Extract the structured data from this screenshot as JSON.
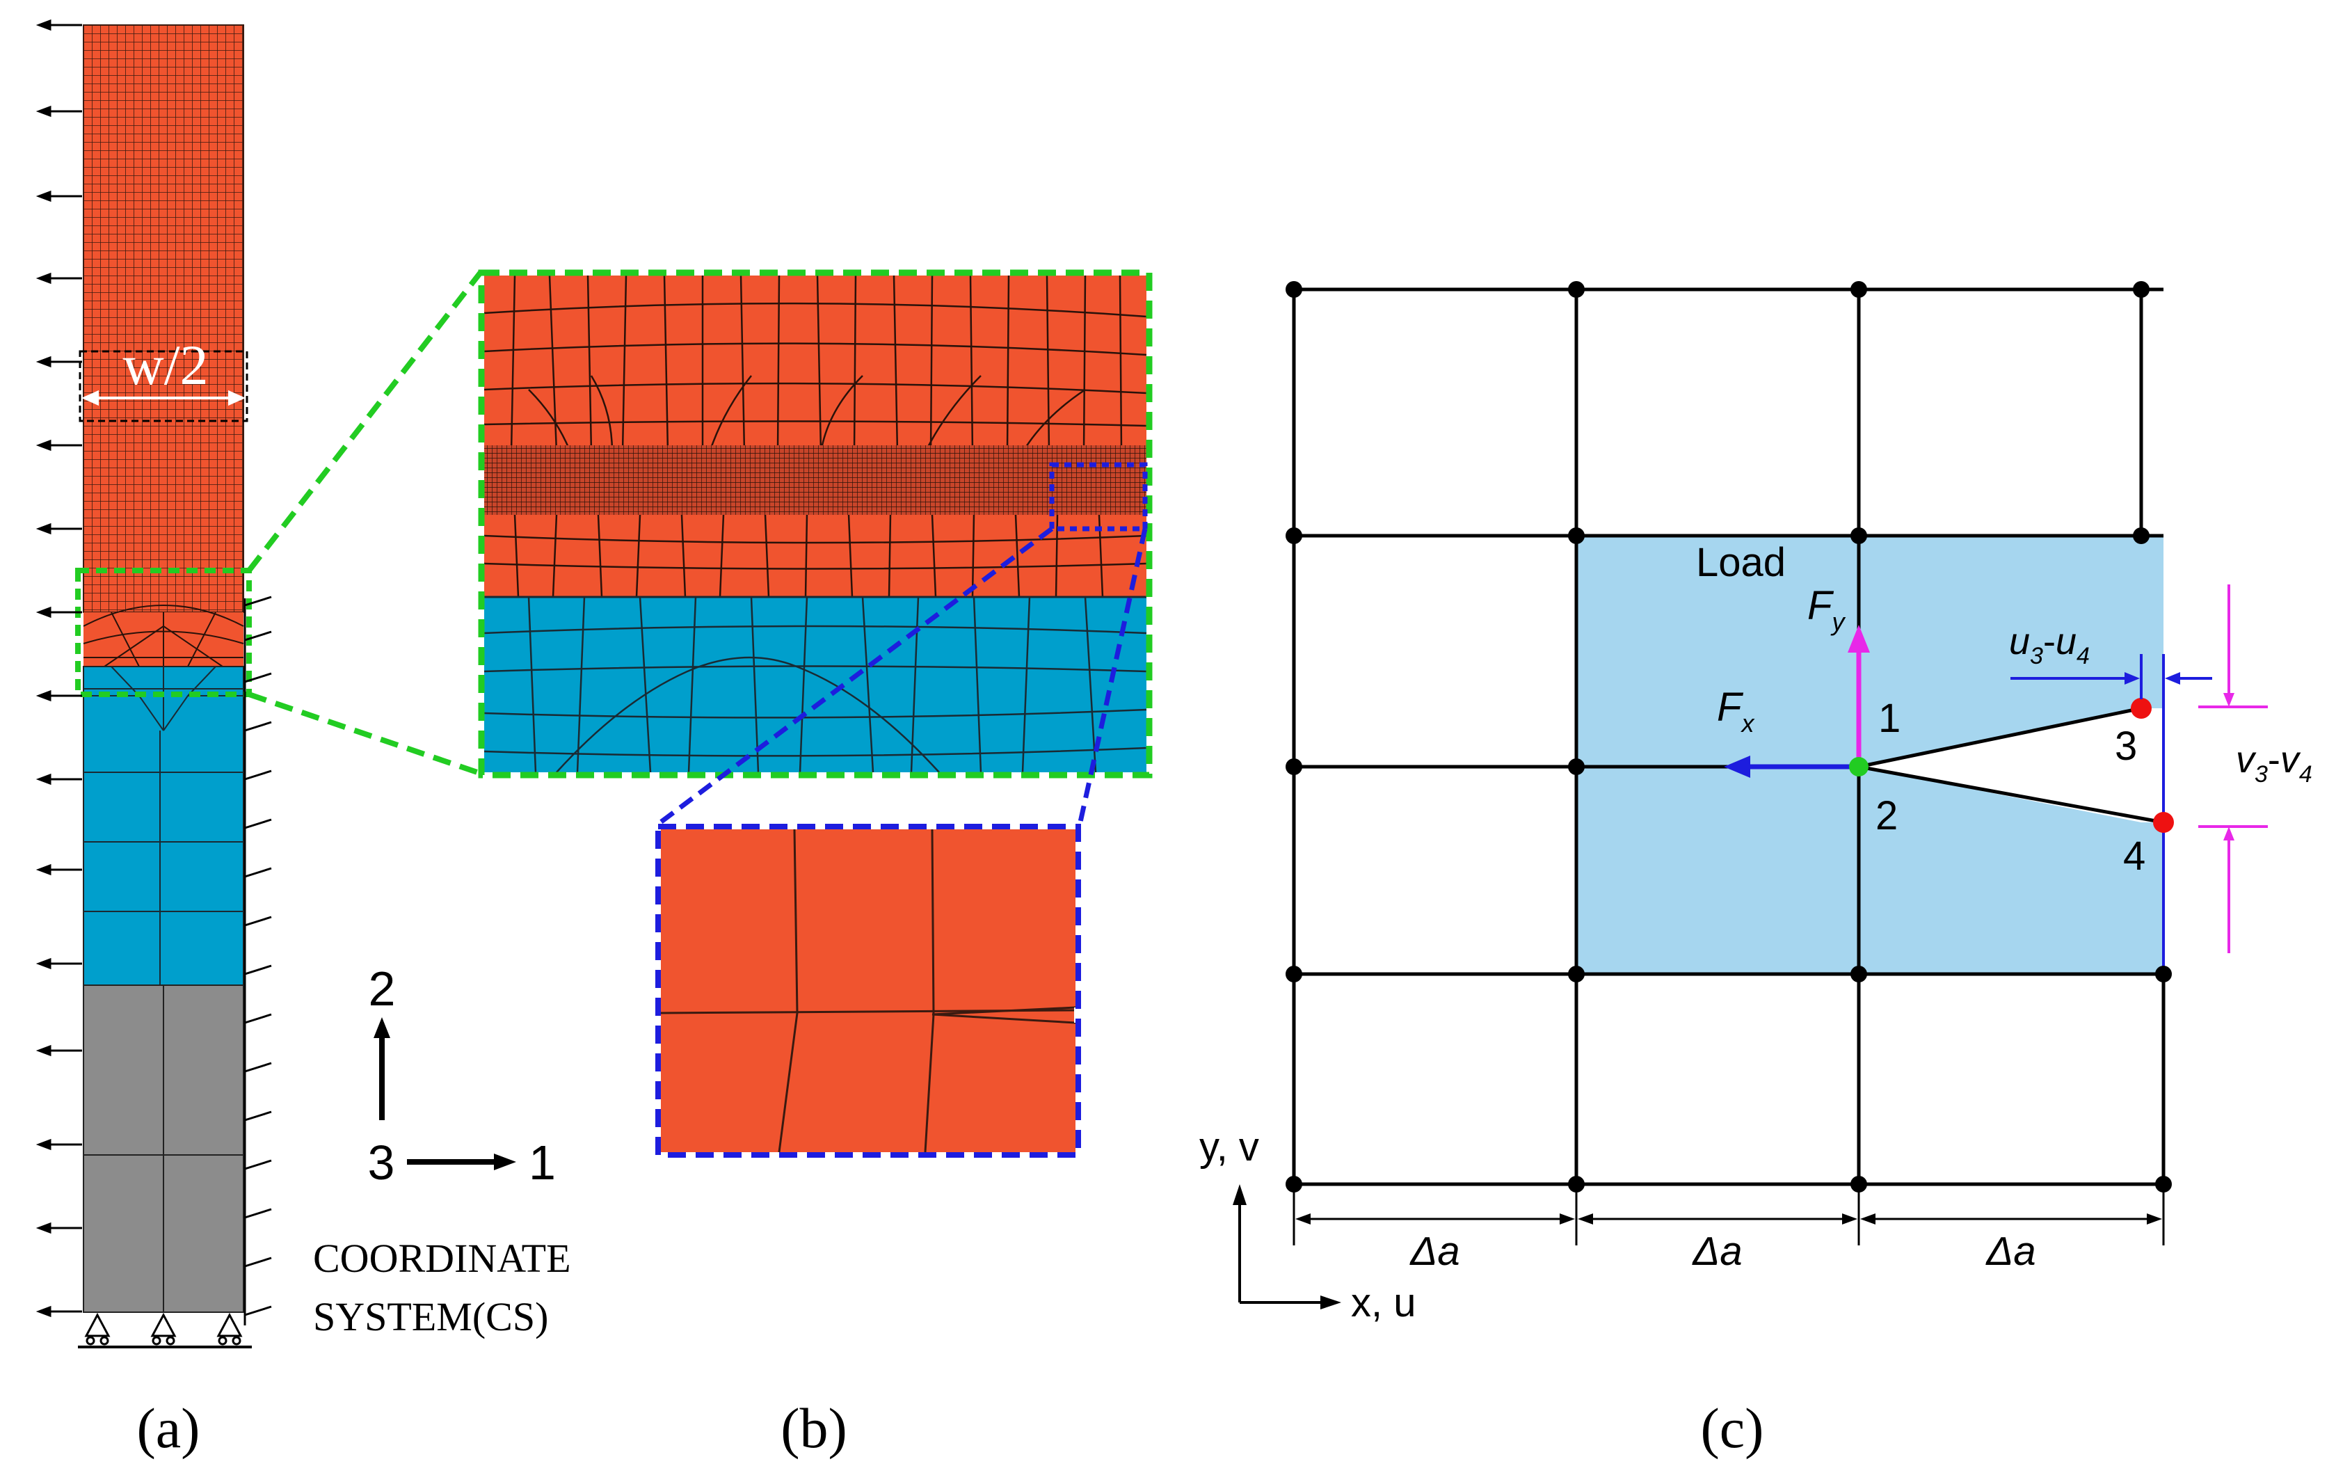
{
  "panel_a": {
    "caption": "(a)",
    "width_label": "w/2",
    "cs_axis_2": "2",
    "cs_axis_3": "3",
    "cs_axis_1": "1",
    "cs_line1": "COORDINATE",
    "cs_line2": "SYSTEM(CS)"
  },
  "panel_b": {
    "caption": "(b)"
  },
  "panel_c": {
    "caption": "(c)",
    "load_label": "Load",
    "fy_main": "F",
    "fy_sub": "y",
    "fx_main": "F",
    "fx_sub": "x",
    "node1": "1",
    "node2": "2",
    "node3": "3",
    "node4": "4",
    "du_v": "u",
    "du_s1": "3",
    "du_dash": "-",
    "du_v2": "u",
    "du_s2": "4",
    "dv_v": "v",
    "dv_s1": "3",
    "dv_dash": "-",
    "dv_v2": "v",
    "dv_s2": "4",
    "yaxis_label": "y, v",
    "xaxis_label": "x, u",
    "delta1": "Δa",
    "delta2": "Δa",
    "delta3": "Δa"
  },
  "colors": {
    "orange": "#f0542f",
    "blue": "#009fcc",
    "gray": "#8c8c8c",
    "green": "#22cc22",
    "dash_blue": "#1d1dde",
    "magenta": "#e828e8",
    "light_blue": "#a6d6ef",
    "red": "#ee1111"
  }
}
